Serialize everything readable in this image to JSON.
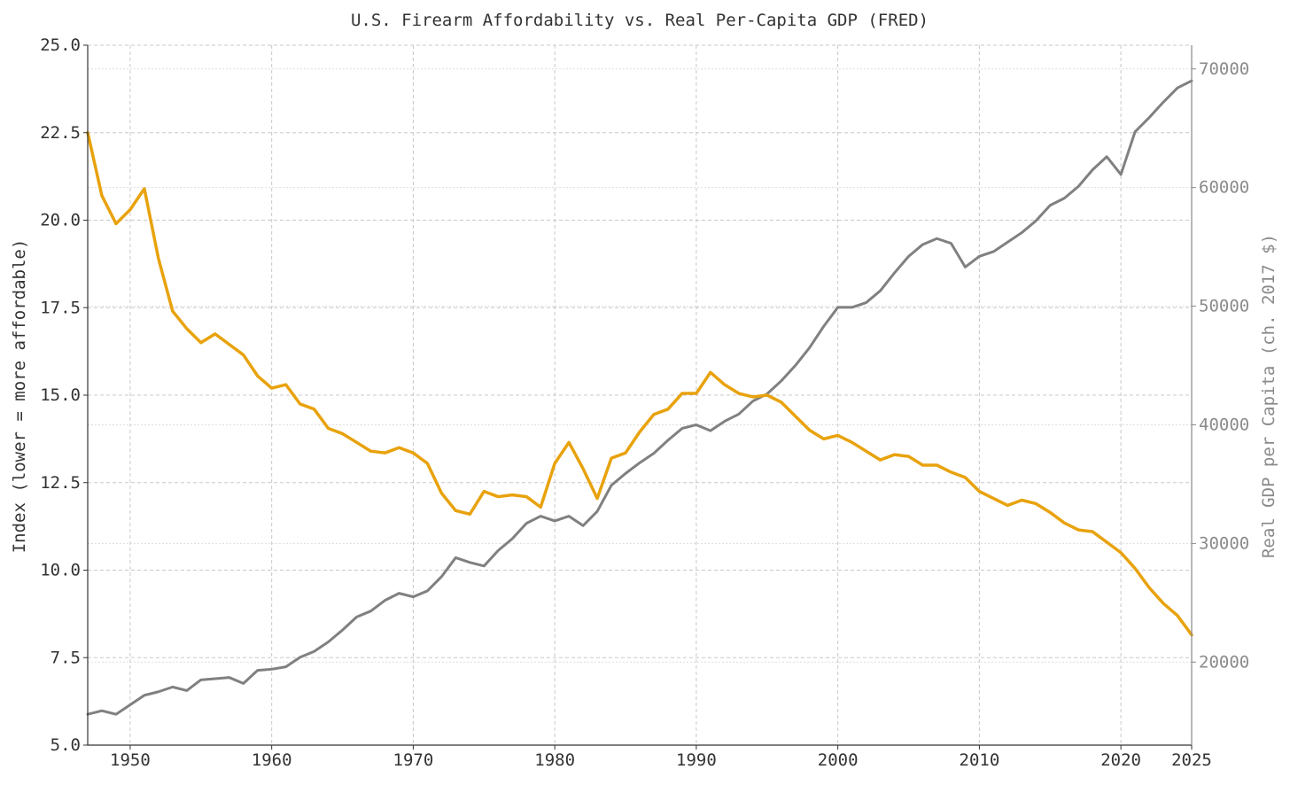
{
  "chart_data": {
    "type": "line",
    "title": "U.S. Firearm Affordability vs. Real Per-Capita GDP (FRED)",
    "xlabel": "",
    "ylabel": "Index (lower = more affordable)",
    "y2label": "Real GDP per Capita (ch. 2017 $)",
    "xlim": [
      1947,
      2025
    ],
    "ylim": [
      5.0,
      25.0
    ],
    "y2lim": [
      13000,
      72000
    ],
    "x_ticks": [
      1950,
      1960,
      1970,
      1980,
      1990,
      2000,
      2010,
      2020,
      2025
    ],
    "y_ticks": [
      "5.0",
      "7.5",
      "10.0",
      "12.5",
      "15.0",
      "17.5",
      "20.0",
      "22.5",
      "25.0"
    ],
    "y2_ticks": [
      "20000",
      "30000",
      "40000",
      "50000",
      "60000",
      "70000"
    ],
    "grid": true,
    "legend": "none",
    "x": [
      1947,
      1948,
      1949,
      1950,
      1951,
      1952,
      1953,
      1954,
      1955,
      1956,
      1957,
      1958,
      1959,
      1960,
      1961,
      1962,
      1963,
      1964,
      1965,
      1966,
      1967,
      1968,
      1969,
      1970,
      1971,
      1972,
      1973,
      1974,
      1975,
      1976,
      1977,
      1978,
      1979,
      1980,
      1981,
      1982,
      1983,
      1984,
      1985,
      1986,
      1987,
      1988,
      1989,
      1990,
      1991,
      1992,
      1993,
      1994,
      1995,
      1996,
      1997,
      1998,
      1999,
      2000,
      2001,
      2002,
      2003,
      2004,
      2005,
      2006,
      2007,
      2008,
      2009,
      2010,
      2011,
      2012,
      2013,
      2014,
      2015,
      2016,
      2017,
      2018,
      2019,
      2020,
      2021,
      2022,
      2023,
      2024,
      2025
    ],
    "series": [
      {
        "name": "",
        "axis": "left",
        "color": "#e8a20c",
        "values": [
          22.5,
          20.7,
          19.9,
          20.3,
          20.9,
          18.9,
          17.4,
          16.9,
          16.5,
          16.75,
          16.45,
          16.15,
          15.55,
          15.2,
          15.3,
          14.75,
          14.6,
          14.05,
          13.9,
          13.65,
          13.4,
          13.35,
          13.5,
          13.35,
          13.05,
          12.2,
          11.7,
          11.6,
          12.25,
          12.1,
          12.15,
          12.1,
          11.8,
          13.05,
          13.65,
          12.9,
          12.05,
          13.2,
          13.35,
          13.95,
          14.45,
          14.6,
          15.05,
          15.05,
          15.65,
          15.3,
          15.05,
          14.95,
          15.0,
          14.8,
          14.4,
          14.0,
          13.75,
          13.85,
          13.65,
          13.4,
          13.15,
          13.3,
          13.25,
          13.0,
          13.0,
          12.8,
          12.65,
          12.25,
          12.05,
          11.85,
          12.0,
          11.9,
          11.65,
          11.35,
          11.15,
          11.1,
          10.8,
          10.5,
          10.05,
          9.5,
          9.05,
          8.7,
          8.15
        ]
      },
      {
        "name": "",
        "axis": "right",
        "color": "#808080",
        "values": [
          15600,
          15900,
          15600,
          16400,
          17200,
          17500,
          17900,
          17600,
          18500,
          18600,
          18700,
          18200,
          19300,
          19400,
          19600,
          20400,
          20900,
          21700,
          22700,
          23800,
          24300,
          25200,
          25800,
          25500,
          26000,
          27200,
          28800,
          28400,
          28100,
          29400,
          30400,
          31700,
          32300,
          31900,
          32300,
          31500,
          32700,
          34900,
          35900,
          36800,
          37600,
          38700,
          39700,
          40000,
          39500,
          40300,
          40900,
          42000,
          42600,
          43700,
          45000,
          46500,
          48300,
          49900,
          49900,
          50300,
          51300,
          52800,
          54200,
          55200,
          55700,
          55300,
          53300,
          54200,
          54600,
          55400,
          56200,
          57200,
          58500,
          59100,
          60100,
          61500,
          62600,
          61100,
          64700,
          65900,
          67200,
          68400,
          69000
        ]
      }
    ]
  }
}
